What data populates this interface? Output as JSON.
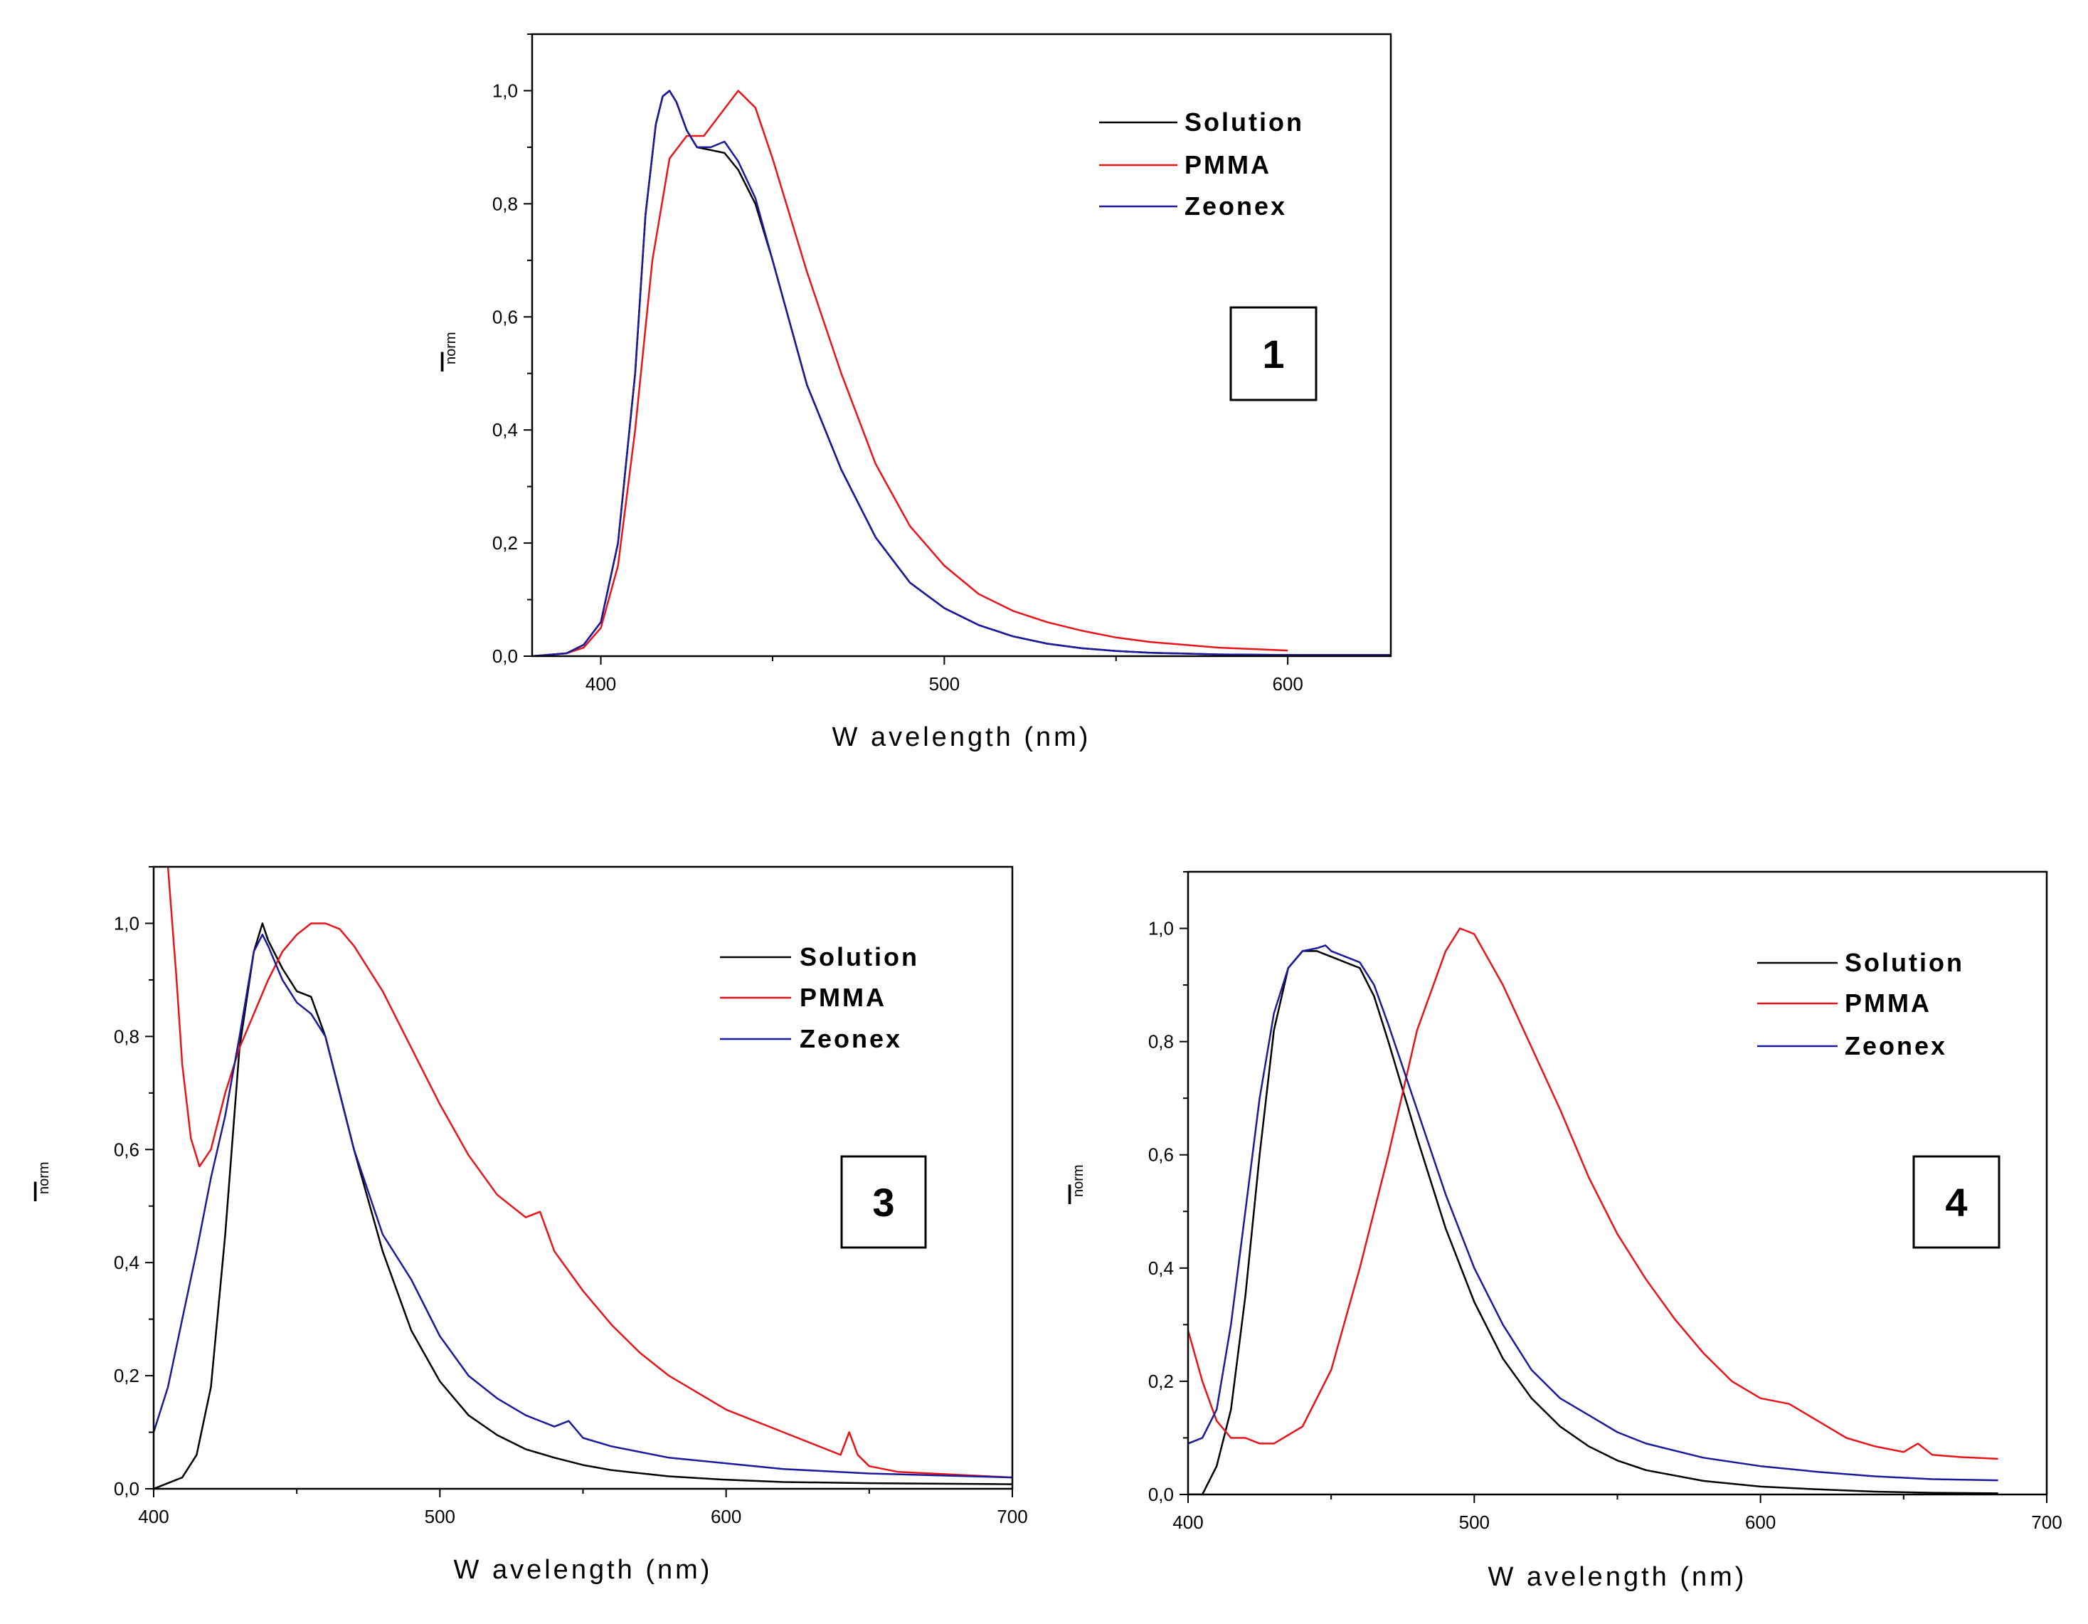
{
  "figure": {
    "decimal_separator": ",",
    "colors": {
      "solution": "#000000",
      "pmma": "#e8141a",
      "zeonex": "#1a1a9c"
    }
  },
  "chart_data": [
    {
      "type": "line",
      "panel_label": "1",
      "xlabel": "W avelength (nm)",
      "ylabel": "I",
      "ylabel_sub": "norm",
      "xlim": [
        380,
        630
      ],
      "ylim": [
        0,
        1.1
      ],
      "xticks": [
        400,
        500,
        600
      ],
      "yticks": [
        0.0,
        0.2,
        0.4,
        0.6,
        0.8,
        1.0
      ],
      "ytick_labels": [
        "0,0",
        "0,2",
        "0,4",
        "0,6",
        "0,8",
        "1,0"
      ],
      "legend": [
        "Solution",
        "PMMA",
        "Zeonex"
      ],
      "series": [
        {
          "name": "Solution",
          "color": "#000000",
          "x": [
            380,
            390,
            395,
            400,
            405,
            410,
            413,
            416,
            418,
            420,
            422,
            425,
            428,
            432,
            436,
            440,
            445,
            450,
            455,
            460,
            470,
            480,
            490,
            500,
            510,
            520,
            530,
            540,
            550,
            560,
            580,
            600,
            630
          ],
          "y": [
            0.0,
            0.005,
            0.02,
            0.06,
            0.2,
            0.5,
            0.78,
            0.94,
            0.99,
            1.0,
            0.98,
            0.93,
            0.9,
            0.895,
            0.89,
            0.86,
            0.8,
            0.7,
            0.59,
            0.48,
            0.33,
            0.21,
            0.13,
            0.085,
            0.055,
            0.035,
            0.022,
            0.014,
            0.009,
            0.006,
            0.003,
            0.002,
            0.002
          ]
        },
        {
          "name": "PMMA",
          "color": "#e8141a",
          "x": [
            380,
            390,
            395,
            400,
            405,
            410,
            415,
            420,
            425,
            430,
            435,
            440,
            445,
            450,
            455,
            460,
            470,
            480,
            490,
            500,
            510,
            520,
            530,
            540,
            550,
            560,
            580,
            600
          ],
          "y": [
            0.0,
            0.005,
            0.015,
            0.05,
            0.16,
            0.4,
            0.7,
            0.88,
            0.92,
            0.92,
            0.96,
            1.0,
            0.97,
            0.88,
            0.78,
            0.68,
            0.5,
            0.34,
            0.23,
            0.16,
            0.11,
            0.08,
            0.06,
            0.045,
            0.033,
            0.025,
            0.015,
            0.01
          ]
        },
        {
          "name": "Zeonex",
          "color": "#1a1a9c",
          "x": [
            380,
            390,
            395,
            400,
            405,
            410,
            413,
            416,
            418,
            420,
            422,
            425,
            428,
            432,
            436,
            440,
            445,
            450,
            455,
            460,
            470,
            480,
            490,
            500,
            510,
            520,
            530,
            540,
            550,
            560,
            580,
            600,
            630
          ],
          "y": [
            0.0,
            0.005,
            0.02,
            0.06,
            0.2,
            0.5,
            0.78,
            0.94,
            0.99,
            1.0,
            0.98,
            0.93,
            0.9,
            0.9,
            0.91,
            0.875,
            0.81,
            0.7,
            0.59,
            0.48,
            0.33,
            0.21,
            0.13,
            0.085,
            0.055,
            0.035,
            0.022,
            0.014,
            0.009,
            0.006,
            0.003,
            0.002,
            0.002
          ]
        }
      ]
    },
    {
      "type": "line",
      "panel_label": "3",
      "xlabel": "W avelength (nm)",
      "ylabel": "I",
      "ylabel_sub": "norm",
      "xlim": [
        400,
        700
      ],
      "ylim": [
        0,
        1.1
      ],
      "xticks": [
        400,
        500,
        600,
        700
      ],
      "yticks": [
        0.0,
        0.2,
        0.4,
        0.6,
        0.8,
        1.0
      ],
      "ytick_labels": [
        "0,0",
        "0,2",
        "0,4",
        "0,6",
        "0,8",
        "1,0"
      ],
      "legend": [
        "Solution",
        "PMMA",
        "Zeonex"
      ],
      "series": [
        {
          "name": "Solution",
          "color": "#000000",
          "x": [
            400,
            410,
            415,
            420,
            425,
            430,
            435,
            438,
            440,
            445,
            450,
            455,
            460,
            470,
            480,
            490,
            500,
            510,
            520,
            530,
            540,
            550,
            560,
            580,
            600,
            620,
            650,
            700
          ],
          "y": [
            0.0,
            0.02,
            0.06,
            0.18,
            0.45,
            0.78,
            0.95,
            1.0,
            0.97,
            0.92,
            0.88,
            0.87,
            0.8,
            0.6,
            0.42,
            0.28,
            0.19,
            0.13,
            0.095,
            0.07,
            0.055,
            0.042,
            0.033,
            0.022,
            0.016,
            0.012,
            0.01,
            0.008
          ]
        },
        {
          "name": "PMMA",
          "color": "#e8141a",
          "x": [
            405,
            408,
            410,
            413,
            416,
            420,
            425,
            430,
            435,
            440,
            445,
            450,
            455,
            460,
            465,
            470,
            480,
            490,
            500,
            510,
            520,
            530,
            535,
            540,
            550,
            560,
            570,
            580,
            600,
            620,
            635,
            640,
            643,
            646,
            650,
            660,
            680,
            700
          ],
          "y": [
            1.1,
            0.9,
            0.75,
            0.62,
            0.57,
            0.6,
            0.7,
            0.78,
            0.84,
            0.9,
            0.95,
            0.98,
            1.0,
            1.0,
            0.99,
            0.96,
            0.88,
            0.78,
            0.68,
            0.59,
            0.52,
            0.48,
            0.49,
            0.42,
            0.35,
            0.29,
            0.24,
            0.2,
            0.14,
            0.1,
            0.07,
            0.06,
            0.1,
            0.06,
            0.04,
            0.03,
            0.025,
            0.02
          ]
        },
        {
          "name": "Zeonex",
          "color": "#1a1a9c",
          "x": [
            400,
            405,
            410,
            415,
            420,
            425,
            430,
            435,
            438,
            440,
            445,
            450,
            455,
            460,
            470,
            480,
            490,
            500,
            510,
            520,
            530,
            540,
            545,
            550,
            560,
            580,
            600,
            620,
            650,
            700
          ],
          "y": [
            0.1,
            0.18,
            0.3,
            0.42,
            0.55,
            0.66,
            0.8,
            0.95,
            0.98,
            0.96,
            0.9,
            0.86,
            0.84,
            0.8,
            0.6,
            0.45,
            0.37,
            0.27,
            0.2,
            0.16,
            0.13,
            0.11,
            0.12,
            0.09,
            0.075,
            0.055,
            0.045,
            0.035,
            0.027,
            0.02
          ]
        }
      ]
    },
    {
      "type": "line",
      "panel_label": "4",
      "xlabel": "W avelength (nm)",
      "ylabel": "I",
      "ylabel_sub": "norm",
      "xlim": [
        400,
        700
      ],
      "ylim": [
        0,
        1.1
      ],
      "xticks": [
        400,
        500,
        600,
        700
      ],
      "yticks": [
        0.0,
        0.2,
        0.4,
        0.6,
        0.8,
        1.0
      ],
      "ytick_labels": [
        "0,0",
        "0,2",
        "0,4",
        "0,6",
        "0,8",
        "1,0"
      ],
      "legend": [
        "Solution",
        "PMMA",
        "Zeonex"
      ],
      "series": [
        {
          "name": "Solution",
          "color": "#000000",
          "x": [
            400,
            405,
            410,
            415,
            420,
            425,
            430,
            435,
            440,
            445,
            450,
            455,
            460,
            465,
            470,
            480,
            490,
            500,
            510,
            520,
            530,
            540,
            550,
            560,
            580,
            600,
            620,
            640,
            660,
            683
          ],
          "y": [
            0.0,
            0.0,
            0.05,
            0.15,
            0.35,
            0.6,
            0.82,
            0.93,
            0.96,
            0.96,
            0.95,
            0.94,
            0.93,
            0.88,
            0.8,
            0.63,
            0.47,
            0.34,
            0.24,
            0.17,
            0.12,
            0.085,
            0.06,
            0.043,
            0.024,
            0.014,
            0.009,
            0.005,
            0.003,
            0.002
          ]
        },
        {
          "name": "PMMA",
          "color": "#e8141a",
          "x": [
            400,
            405,
            410,
            415,
            420,
            425,
            430,
            440,
            450,
            460,
            470,
            480,
            490,
            495,
            500,
            510,
            520,
            530,
            540,
            550,
            560,
            570,
            580,
            590,
            600,
            610,
            620,
            630,
            640,
            650,
            655,
            660,
            670,
            683
          ],
          "y": [
            0.29,
            0.2,
            0.13,
            0.1,
            0.1,
            0.09,
            0.09,
            0.12,
            0.22,
            0.4,
            0.6,
            0.82,
            0.96,
            1.0,
            0.99,
            0.9,
            0.79,
            0.68,
            0.56,
            0.46,
            0.38,
            0.31,
            0.25,
            0.2,
            0.17,
            0.16,
            0.13,
            0.1,
            0.085,
            0.075,
            0.09,
            0.07,
            0.066,
            0.063
          ]
        },
        {
          "name": "Zeonex",
          "color": "#1a1a9c",
          "x": [
            400,
            405,
            410,
            415,
            420,
            425,
            430,
            435,
            440,
            445,
            448,
            450,
            455,
            460,
            465,
            470,
            480,
            490,
            500,
            510,
            520,
            530,
            540,
            550,
            560,
            580,
            600,
            620,
            640,
            660,
            683
          ],
          "y": [
            0.09,
            0.1,
            0.15,
            0.3,
            0.5,
            0.7,
            0.85,
            0.93,
            0.96,
            0.965,
            0.97,
            0.96,
            0.95,
            0.94,
            0.9,
            0.83,
            0.68,
            0.53,
            0.4,
            0.3,
            0.22,
            0.17,
            0.14,
            0.11,
            0.09,
            0.065,
            0.05,
            0.04,
            0.032,
            0.027,
            0.025
          ]
        }
      ]
    }
  ]
}
